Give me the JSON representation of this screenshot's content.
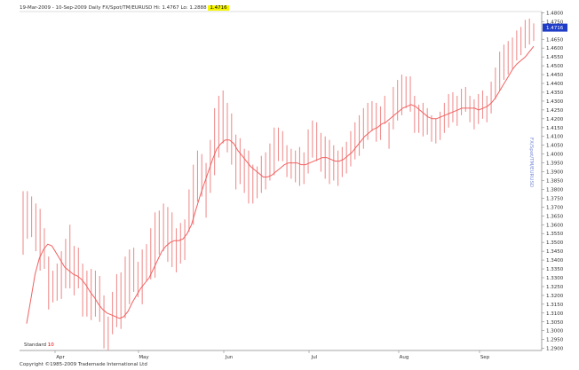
{
  "header": {
    "range": "19-Mar-2009 - 10-Sep-2009",
    "periodicity": "Daily",
    "instrument": "FX/Spot/TM/EURUSD",
    "hi_label": "Hi: 1.4767",
    "lo_label": "Lo: 1.2888",
    "last_value": "1.4716"
  },
  "legend": {
    "name": "Standard",
    "period": "10"
  },
  "copyright": "Copyright ©1985-2009 Trademade International Ltd",
  "side_label": "FX/Spot/TM/EURUSD",
  "colors": {
    "bars": "#f09090",
    "ma": "#f06060",
    "last_badge": "#1e3cc8",
    "axis": "#888888",
    "hi_box": "#f5f500"
  },
  "chart_data": {
    "type": "ohlc_with_moving_average",
    "x_categories": [
      "Apr",
      "May",
      "Jun",
      "Jul",
      "Aug",
      "Sep"
    ],
    "y_ticks": [
      "1.4800",
      "1.4750",
      "1.4650",
      "1.4600",
      "1.4550",
      "1.4500",
      "1.4450",
      "1.4400",
      "1.4350",
      "1.4300",
      "1.4250",
      "1.4200",
      "1.4150",
      "1.4100",
      "1.4050",
      "1.4000",
      "1.3950",
      "1.3900",
      "1.3850",
      "1.3800",
      "1.3750",
      "1.3700",
      "1.3650",
      "1.3600",
      "1.3550",
      "1.3500",
      "1.3450",
      "1.3400",
      "1.3350",
      "1.3300",
      "1.3250",
      "1.3200",
      "1.3150",
      "1.3100",
      "1.3050",
      "1.3000",
      "1.2950",
      "1.2900"
    ],
    "ylim": [
      1.2888,
      1.4807
    ],
    "hi": 1.4767,
    "lo": 1.2888,
    "last": 1.4716,
    "bars": [
      {
        "h": 1.379,
        "l": 1.343
      },
      {
        "h": 1.379,
        "l": 1.352
      },
      {
        "h": 1.376,
        "l": 1.353
      },
      {
        "h": 1.372,
        "l": 1.345
      },
      {
        "h": 1.369,
        "l": 1.334
      },
      {
        "h": 1.358,
        "l": 1.335
      },
      {
        "h": 1.342,
        "l": 1.312
      },
      {
        "h": 1.334,
        "l": 1.316
      },
      {
        "h": 1.338,
        "l": 1.317
      },
      {
        "h": 1.345,
        "l": 1.318
      },
      {
        "h": 1.352,
        "l": 1.324
      },
      {
        "h": 1.36,
        "l": 1.324
      },
      {
        "h": 1.348,
        "l": 1.32
      },
      {
        "h": 1.347,
        "l": 1.324
      },
      {
        "h": 1.338,
        "l": 1.308
      },
      {
        "h": 1.334,
        "l": 1.308
      },
      {
        "h": 1.335,
        "l": 1.306
      },
      {
        "h": 1.334,
        "l": 1.308
      },
      {
        "h": 1.331,
        "l": 1.305
      },
      {
        "h": 1.32,
        "l": 1.29
      },
      {
        "h": 1.308,
        "l": 1.289
      },
      {
        "h": 1.322,
        "l": 1.298
      },
      {
        "h": 1.332,
        "l": 1.302
      },
      {
        "h": 1.333,
        "l": 1.301
      },
      {
        "h": 1.342,
        "l": 1.307
      },
      {
        "h": 1.346,
        "l": 1.315
      },
      {
        "h": 1.347,
        "l": 1.322
      },
      {
        "h": 1.339,
        "l": 1.319
      },
      {
        "h": 1.346,
        "l": 1.315
      },
      {
        "h": 1.349,
        "l": 1.328
      },
      {
        "h": 1.358,
        "l": 1.329
      },
      {
        "h": 1.367,
        "l": 1.33
      },
      {
        "h": 1.368,
        "l": 1.343
      },
      {
        "h": 1.372,
        "l": 1.345
      },
      {
        "h": 1.37,
        "l": 1.339
      },
      {
        "h": 1.367,
        "l": 1.336
      },
      {
        "h": 1.358,
        "l": 1.333
      },
      {
        "h": 1.361,
        "l": 1.338
      },
      {
        "h": 1.363,
        "l": 1.34
      },
      {
        "h": 1.38,
        "l": 1.356
      },
      {
        "h": 1.394,
        "l": 1.36
      },
      {
        "h": 1.402,
        "l": 1.373
      },
      {
        "h": 1.4,
        "l": 1.376
      },
      {
        "h": 1.395,
        "l": 1.364
      },
      {
        "h": 1.408,
        "l": 1.378
      },
      {
        "h": 1.426,
        "l": 1.388
      },
      {
        "h": 1.433,
        "l": 1.398
      },
      {
        "h": 1.436,
        "l": 1.406
      },
      {
        "h": 1.429,
        "l": 1.401
      },
      {
        "h": 1.423,
        "l": 1.394
      },
      {
        "h": 1.411,
        "l": 1.38
      },
      {
        "h": 1.409,
        "l": 1.383
      },
      {
        "h": 1.403,
        "l": 1.378
      },
      {
        "h": 1.402,
        "l": 1.372
      },
      {
        "h": 1.394,
        "l": 1.372
      },
      {
        "h": 1.393,
        "l": 1.375
      },
      {
        "h": 1.399,
        "l": 1.378
      },
      {
        "h": 1.401,
        "l": 1.38
      },
      {
        "h": 1.406,
        "l": 1.385
      },
      {
        "h": 1.415,
        "l": 1.388
      },
      {
        "h": 1.415,
        "l": 1.396
      },
      {
        "h": 1.413,
        "l": 1.396
      },
      {
        "h": 1.405,
        "l": 1.387
      },
      {
        "h": 1.403,
        "l": 1.386
      },
      {
        "h": 1.402,
        "l": 1.384
      },
      {
        "h": 1.404,
        "l": 1.382
      },
      {
        "h": 1.401,
        "l": 1.383
      },
      {
        "h": 1.414,
        "l": 1.389
      },
      {
        "h": 1.419,
        "l": 1.398
      },
      {
        "h": 1.418,
        "l": 1.396
      },
      {
        "h": 1.412,
        "l": 1.39
      },
      {
        "h": 1.41,
        "l": 1.386
      },
      {
        "h": 1.408,
        "l": 1.383
      },
      {
        "h": 1.405,
        "l": 1.385
      },
      {
        "h": 1.402,
        "l": 1.382
      },
      {
        "h": 1.404,
        "l": 1.387
      },
      {
        "h": 1.407,
        "l": 1.389
      },
      {
        "h": 1.413,
        "l": 1.393
      },
      {
        "h": 1.418,
        "l": 1.397
      },
      {
        "h": 1.422,
        "l": 1.399
      },
      {
        "h": 1.426,
        "l": 1.403
      },
      {
        "h": 1.429,
        "l": 1.408
      },
      {
        "h": 1.43,
        "l": 1.413
      },
      {
        "h": 1.429,
        "l": 1.407
      },
      {
        "h": 1.427,
        "l": 1.408
      },
      {
        "h": 1.433,
        "l": 1.417
      },
      {
        "h": 1.418,
        "l": 1.403
      },
      {
        "h": 1.438,
        "l": 1.414
      },
      {
        "h": 1.442,
        "l": 1.419
      },
      {
        "h": 1.445,
        "l": 1.422
      },
      {
        "h": 1.444,
        "l": 1.426
      },
      {
        "h": 1.444,
        "l": 1.424
      },
      {
        "h": 1.433,
        "l": 1.412
      },
      {
        "h": 1.428,
        "l": 1.412
      },
      {
        "h": 1.429,
        "l": 1.41
      },
      {
        "h": 1.426,
        "l": 1.411
      },
      {
        "h": 1.422,
        "l": 1.407
      },
      {
        "h": 1.42,
        "l": 1.406
      },
      {
        "h": 1.424,
        "l": 1.408
      },
      {
        "h": 1.429,
        "l": 1.412
      },
      {
        "h": 1.434,
        "l": 1.415
      },
      {
        "h": 1.435,
        "l": 1.418
      },
      {
        "h": 1.433,
        "l": 1.416
      },
      {
        "h": 1.437,
        "l": 1.422
      },
      {
        "h": 1.438,
        "l": 1.424
      },
      {
        "h": 1.433,
        "l": 1.418
      },
      {
        "h": 1.431,
        "l": 1.414
      },
      {
        "h": 1.434,
        "l": 1.417
      },
      {
        "h": 1.436,
        "l": 1.42
      },
      {
        "h": 1.433,
        "l": 1.418
      },
      {
        "h": 1.441,
        "l": 1.423
      },
      {
        "h": 1.449,
        "l": 1.431
      },
      {
        "h": 1.458,
        "l": 1.436
      },
      {
        "h": 1.462,
        "l": 1.442
      },
      {
        "h": 1.464,
        "l": 1.445
      },
      {
        "h": 1.466,
        "l": 1.448
      },
      {
        "h": 1.47,
        "l": 1.453
      },
      {
        "h": 1.472,
        "l": 1.456
      },
      {
        "h": 1.476,
        "l": 1.46
      },
      {
        "h": 1.4767,
        "l": 1.462
      },
      {
        "h": 1.474,
        "l": 1.464
      }
    ],
    "moving_average": [
      1.304,
      1.318,
      1.332,
      1.341,
      1.346,
      1.349,
      1.348,
      1.344,
      1.34,
      1.336,
      1.334,
      1.332,
      1.331,
      1.329,
      1.326,
      1.322,
      1.319,
      1.315,
      1.312,
      1.31,
      1.309,
      1.308,
      1.307,
      1.308,
      1.311,
      1.316,
      1.32,
      1.324,
      1.327,
      1.33,
      1.335,
      1.34,
      1.345,
      1.348,
      1.35,
      1.351,
      1.351,
      1.352,
      1.355,
      1.36,
      1.368,
      1.376,
      1.383,
      1.39,
      1.397,
      1.403,
      1.406,
      1.408,
      1.408,
      1.406,
      1.402,
      1.399,
      1.396,
      1.393,
      1.391,
      1.389,
      1.387,
      1.387,
      1.388,
      1.39,
      1.392,
      1.394,
      1.395,
      1.395,
      1.395,
      1.394,
      1.394,
      1.395,
      1.396,
      1.397,
      1.398,
      1.398,
      1.397,
      1.396,
      1.396,
      1.397,
      1.399,
      1.401,
      1.404,
      1.407,
      1.41,
      1.412,
      1.414,
      1.415,
      1.417,
      1.418,
      1.42,
      1.422,
      1.424,
      1.426,
      1.427,
      1.428,
      1.427,
      1.425,
      1.423,
      1.421,
      1.42,
      1.42,
      1.421,
      1.422,
      1.423,
      1.424,
      1.425,
      1.426,
      1.426,
      1.426,
      1.426,
      1.425,
      1.426,
      1.427,
      1.429,
      1.432,
      1.436,
      1.44,
      1.444,
      1.448,
      1.451,
      1.453,
      1.455,
      1.458,
      1.461
    ]
  }
}
